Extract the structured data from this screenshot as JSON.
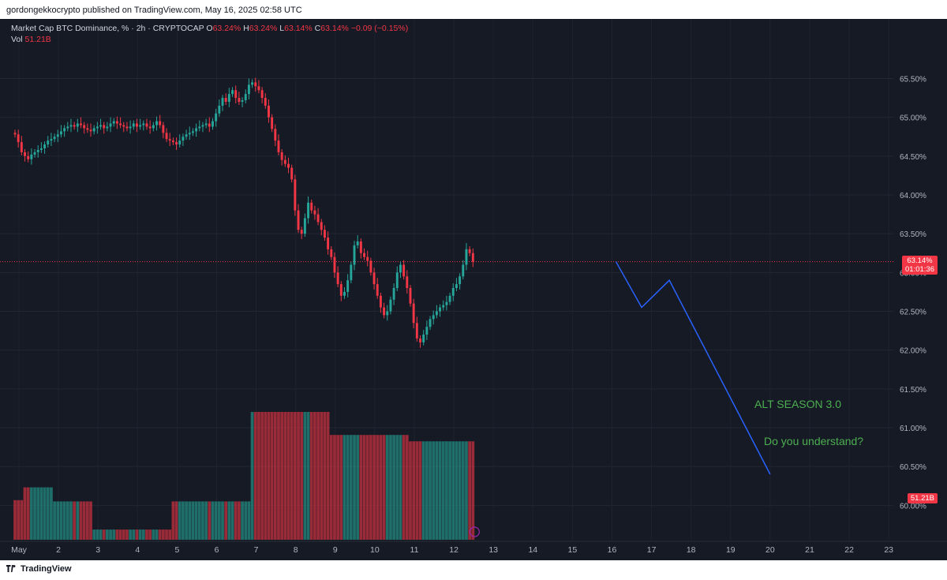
{
  "header": {
    "published": "gordongekkocrypto published on TradingView.com, May 16, 2025 02:58 UTC"
  },
  "legend": {
    "symbol": "Market Cap BTC Dominance, % · 2h · CRYPTOCAP",
    "open_label": "O",
    "open": "63.24%",
    "high_label": "H",
    "high": "63.24%",
    "low_label": "L",
    "low": "63.14%",
    "close_label": "C",
    "close": "63.14%",
    "change": "−0.09 (−0.15%)",
    "vol_label": "Vol",
    "vol": "51.21B"
  },
  "price_badge": {
    "price": "63.14%",
    "countdown": "01:01:36"
  },
  "vol_badge": "51.21B",
  "annotations": {
    "line1": "ALT SEASON 3.0",
    "line2": "Do you understand?"
  },
  "footer": {
    "brand": "TradingView"
  },
  "colors": {
    "up": "#26a69a",
    "down": "#f23645",
    "projection": "#2962ff",
    "text_note": "#4caf50",
    "background": "#161a25"
  },
  "chart_data": {
    "type": "candlestick",
    "ylim": [
      59.8,
      65.8
    ],
    "yticks": [
      "65.50%",
      "65.00%",
      "64.50%",
      "64.00%",
      "63.50%",
      "63.00%",
      "62.50%",
      "62.00%",
      "61.50%",
      "61.00%",
      "60.50%",
      "60.00%"
    ],
    "ytick_values": [
      65.5,
      65.0,
      64.5,
      64.0,
      63.5,
      63.0,
      62.5,
      62.0,
      61.5,
      61.0,
      60.5,
      60.0
    ],
    "xticks": [
      "May",
      "2",
      "3",
      "4",
      "5",
      "6",
      "7",
      "8",
      "9",
      "10",
      "11",
      "12",
      "13",
      "14",
      "15",
      "16",
      "17",
      "18",
      "19",
      "20",
      "21",
      "22",
      "23"
    ],
    "xtick_days": [
      1,
      2,
      3,
      4,
      5,
      6,
      7,
      8,
      9,
      10,
      11,
      12,
      13,
      14,
      15,
      16,
      17,
      18,
      19,
      20,
      21,
      22,
      23
    ],
    "x_start_day": 0.9,
    "bars_per_day": 12,
    "closes": [
      64.78,
      64.68,
      64.55,
      64.5,
      64.46,
      64.52,
      64.55,
      64.58,
      64.6,
      64.65,
      64.7,
      64.72,
      64.75,
      64.78,
      64.82,
      64.86,
      64.88,
      64.9,
      64.88,
      64.92,
      64.9,
      64.86,
      64.84,
      64.82,
      64.86,
      64.88,
      64.9,
      64.86,
      64.88,
      64.92,
      64.95,
      64.92,
      64.9,
      64.88,
      64.86,
      64.88,
      64.92,
      64.88,
      64.9,
      64.92,
      64.88,
      64.86,
      64.9,
      64.95,
      64.9,
      64.8,
      64.72,
      64.7,
      64.68,
      64.65,
      64.7,
      64.75,
      64.78,
      64.8,
      64.82,
      64.86,
      64.88,
      64.9,
      64.92,
      64.88,
      64.95,
      65.05,
      65.15,
      65.25,
      65.2,
      65.3,
      65.35,
      65.25,
      65.2,
      65.22,
      65.3,
      65.42,
      65.45,
      65.4,
      65.35,
      65.25,
      65.15,
      65.0,
      64.85,
      64.7,
      64.55,
      64.45,
      64.4,
      64.35,
      64.2,
      63.8,
      63.55,
      63.5,
      63.7,
      63.9,
      63.8,
      63.75,
      63.65,
      63.55,
      63.45,
      63.3,
      63.2,
      63.0,
      62.85,
      62.7,
      62.75,
      62.9,
      63.1,
      63.35,
      63.4,
      63.25,
      63.2,
      63.15,
      63.0,
      62.85,
      62.7,
      62.55,
      62.45,
      62.5,
      62.65,
      62.8,
      63.0,
      63.1,
      62.95,
      62.8,
      62.6,
      62.35,
      62.15,
      62.1,
      62.2,
      62.3,
      62.4,
      62.45,
      62.5,
      62.55,
      62.58,
      62.62,
      62.7,
      62.8,
      62.85,
      62.95,
      63.1,
      63.3,
      63.25,
      63.14
    ],
    "volume_blocks": [
      [
        0,
        3,
        0.31
      ],
      [
        3,
        12,
        0.41
      ],
      [
        12,
        24,
        0.3
      ],
      [
        24,
        48,
        0.08
      ],
      [
        48,
        72,
        0.3
      ],
      [
        72,
        96,
        1.0
      ],
      [
        96,
        120,
        0.82
      ],
      [
        120,
        144,
        0.77
      ],
      [
        144,
        168,
        0.36
      ],
      [
        168,
        180,
        0.56
      ],
      [
        180,
        200,
        0.82
      ],
      [
        200,
        218,
        0.76
      ],
      [
        218,
        228,
        0.57
      ],
      [
        228,
        236,
        0.55
      ],
      [
        236,
        240,
        0.62
      ],
      [
        240,
        248,
        0.29
      ]
    ],
    "projection": [
      {
        "day": 16.1,
        "value": 63.14
      },
      {
        "day": 16.75,
        "value": 62.55
      },
      {
        "day": 17.45,
        "value": 62.9
      },
      {
        "day": 20.0,
        "value": 60.4
      }
    ]
  }
}
